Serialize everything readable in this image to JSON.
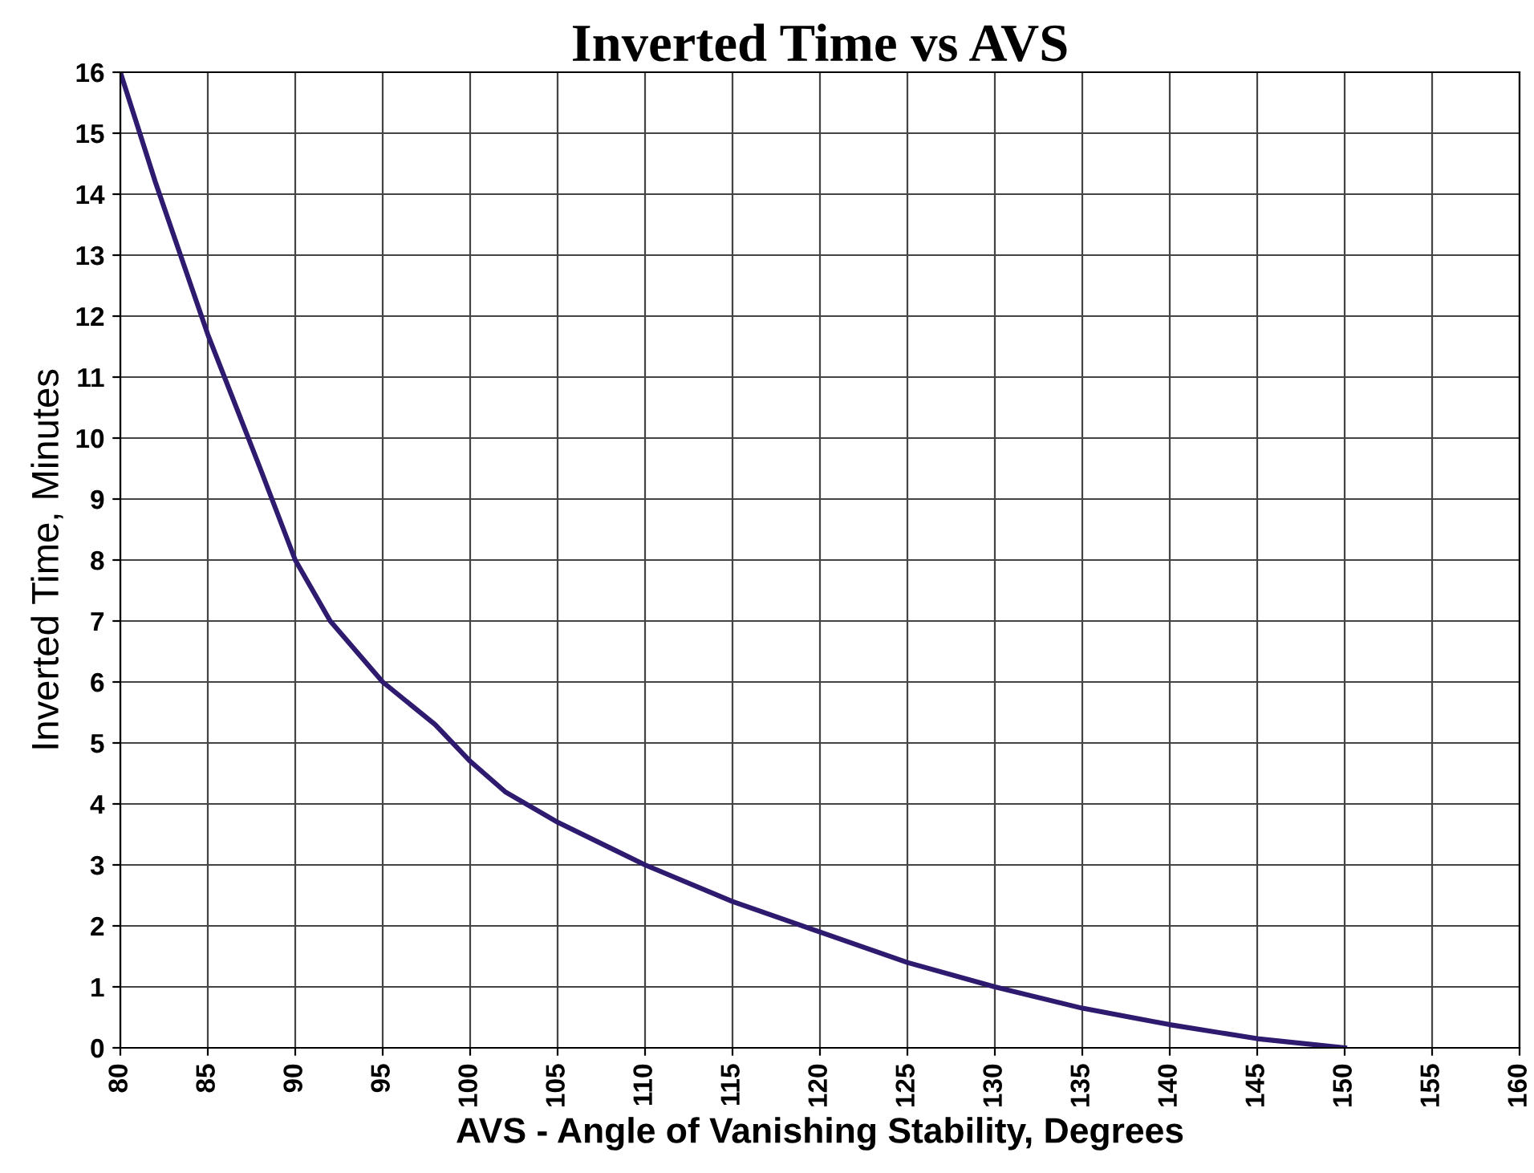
{
  "chart_data": {
    "type": "line",
    "title": "Inverted Time vs AVS",
    "xlabel": "AVS - Angle of Vanishing Stability, Degrees",
    "ylabel": "Inverted Time, Minutes",
    "x": [
      80,
      82,
      85,
      88,
      90,
      92,
      95,
      98,
      100,
      102,
      105,
      110,
      115,
      120,
      125,
      130,
      135,
      140,
      145,
      150
    ],
    "series": [
      {
        "color": "#2e1a6e",
        "values": [
          16,
          14.2,
          11.7,
          9.5,
          8.0,
          7.0,
          6.0,
          5.3,
          4.7,
          4.2,
          3.7,
          3.0,
          2.4,
          1.9,
          1.4,
          1.0,
          0.65,
          0.38,
          0.15,
          0
        ]
      }
    ],
    "xlim": [
      80,
      160
    ],
    "xticks": [
      80,
      85,
      90,
      95,
      100,
      105,
      110,
      115,
      120,
      125,
      130,
      135,
      140,
      145,
      150,
      155,
      160
    ],
    "ylim": [
      0,
      16
    ],
    "yticks": [
      0,
      1,
      2,
      3,
      4,
      5,
      6,
      7,
      8,
      9,
      10,
      11,
      12,
      13,
      14,
      15,
      16
    ],
    "grid": true,
    "marker": "none",
    "line_style": "solid",
    "legend": false
  }
}
